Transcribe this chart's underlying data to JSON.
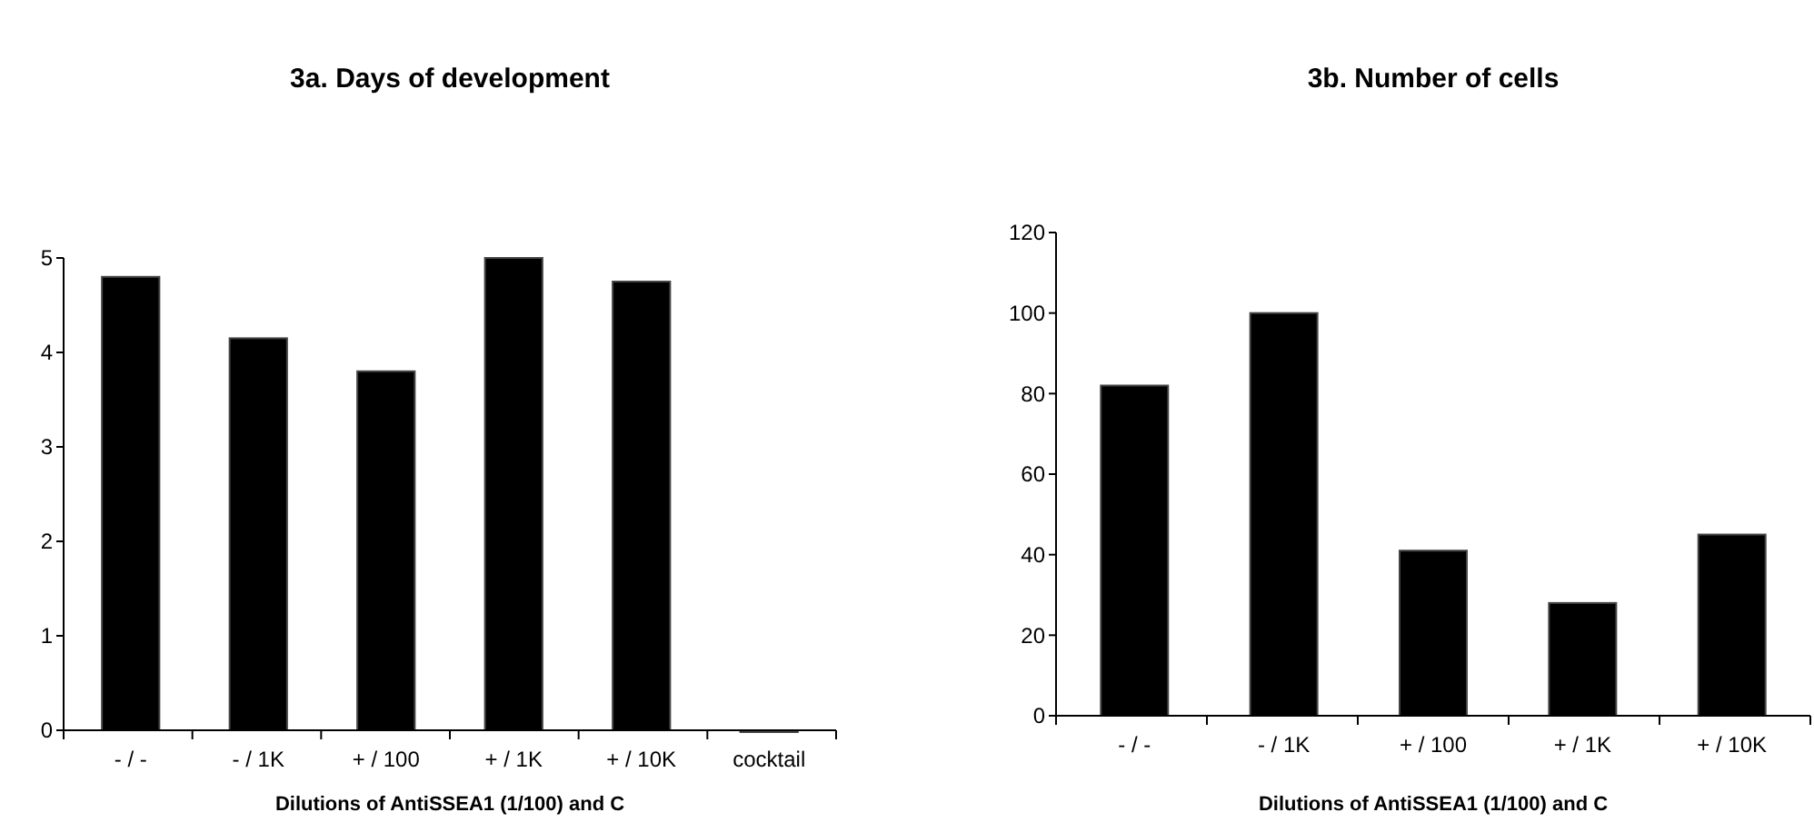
{
  "chart_data": [
    {
      "type": "bar",
      "title": "3a. Days of development",
      "xlabel": "Dilutions of AntiSSEA1 (1/100)  and C",
      "categories": [
        "- /  -",
        "- / 1K",
        "+ / 100",
        "+ / 1K",
        "+ / 10K",
        "cocktail"
      ],
      "values": [
        4.8,
        4.15,
        3.8,
        5,
        4.75,
        0
      ],
      "color": "#000000",
      "ylim": [
        0,
        5
      ],
      "yticks": [
        0,
        1,
        2,
        3,
        4,
        5
      ],
      "grid": false
    },
    {
      "type": "bar",
      "title": "3b. Number of cells",
      "xlabel": "Dilutions of AntiSSEA1 (1/100) and C",
      "categories": [
        "- /  -",
        "- / 1K",
        "+ / 100",
        "+ / 1K",
        "+ / 10K"
      ],
      "values": [
        82,
        100,
        41,
        28,
        45
      ],
      "color": "#000000",
      "ylim": [
        0,
        120
      ],
      "yticks": [
        0,
        20,
        40,
        60,
        80,
        100,
        120
      ],
      "grid": false
    }
  ]
}
